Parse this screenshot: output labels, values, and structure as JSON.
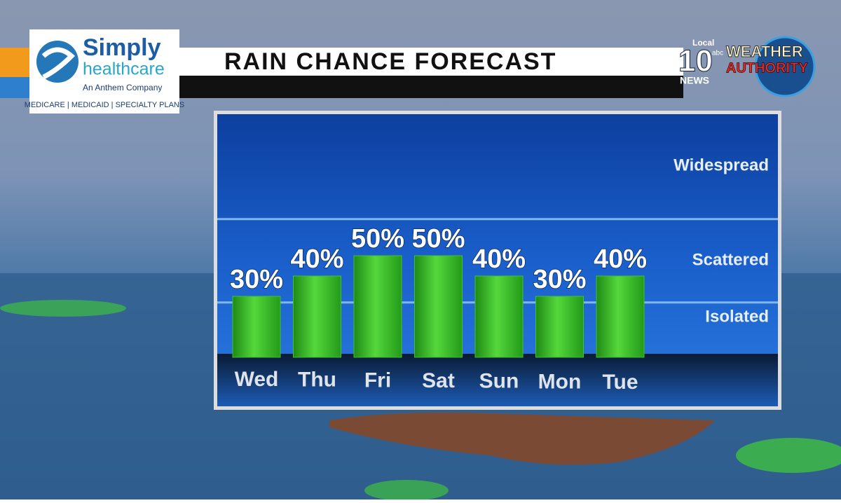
{
  "chart_data": {
    "type": "bar",
    "title": "RAIN CHANCE FORECAST",
    "categories": [
      "Wed",
      "Thu",
      "Fri",
      "Sat",
      "Sun",
      "Mon",
      "Tue"
    ],
    "values": [
      30,
      40,
      50,
      50,
      40,
      30,
      40
    ],
    "value_labels": [
      "30%",
      "40%",
      "50%",
      "50%",
      "40%",
      "30%",
      "40%"
    ],
    "color": "#3fc22b",
    "ylim": [
      0,
      120
    ],
    "zones": [
      "Isolated",
      "Scattered",
      "Widespread"
    ],
    "zone_bounds": [
      27,
      68
    ]
  },
  "sponsor": {
    "name": "Simply",
    "name2": "healthcare",
    "tagline": "An Anthem Company",
    "plans": "MEDICARE | MEDICAID | SPECIALTY PLANS"
  },
  "station": {
    "local": "Local",
    "number": "10",
    "network": "abc",
    "news": "NEWS",
    "brand1": "WEATHER",
    "brand2": "AUTHORITY"
  }
}
